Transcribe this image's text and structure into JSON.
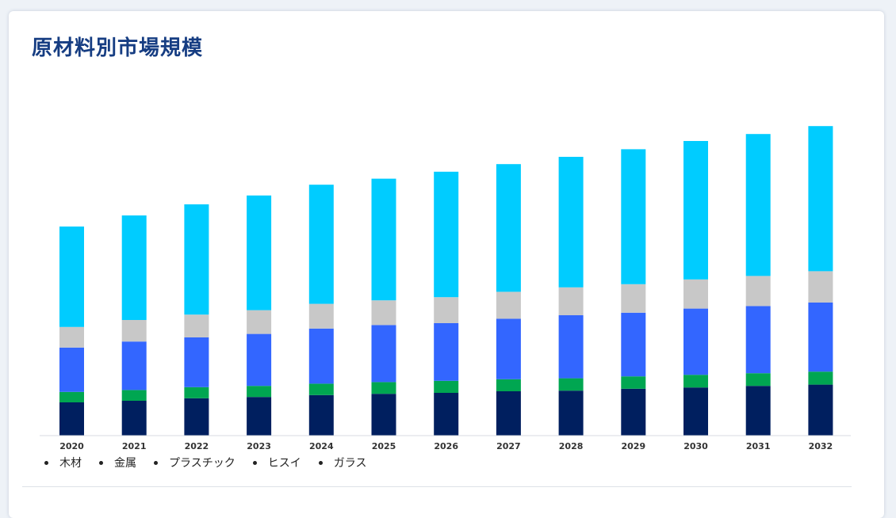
{
  "card": {
    "title": "原材料別市場規模"
  },
  "chart_data": {
    "type": "bar",
    "stacked": true,
    "title": "原材料別市場規模",
    "xlabel": "",
    "ylabel": "",
    "grid": false,
    "legend_position": "bottom-left",
    "categories": [
      "2020",
      "2021",
      "2022",
      "2023",
      "2024",
      "2025",
      "2026",
      "2027",
      "2028",
      "2029",
      "2030",
      "2031",
      "2032"
    ],
    "ylim": [
      0,
      100
    ],
    "series": [
      {
        "name": "木材",
        "color": "#001f5f",
        "values": [
          10.5,
          11.0,
          11.8,
          12.2,
          12.8,
          13.2,
          13.5,
          14.0,
          14.2,
          14.8,
          15.2,
          15.7,
          16.1
        ]
      },
      {
        "name": "金属",
        "color": "#00a651",
        "values": [
          3.3,
          3.4,
          3.5,
          3.5,
          3.6,
          3.7,
          3.8,
          3.8,
          3.9,
          3.9,
          4.0,
          4.0,
          4.1
        ]
      },
      {
        "name": "プラスチック",
        "color": "#3366ff",
        "values": [
          14.0,
          15.3,
          15.7,
          16.4,
          17.4,
          18.0,
          18.2,
          19.1,
          19.9,
          20.1,
          20.9,
          21.2,
          21.8
        ]
      },
      {
        "name": "ヒスイ",
        "color": "#c8c8c8",
        "values": [
          6.5,
          6.8,
          7.2,
          7.5,
          7.8,
          7.8,
          8.2,
          8.5,
          8.8,
          9.0,
          9.2,
          9.5,
          9.9
        ]
      },
      {
        "name": "ガラス",
        "color": "#00ccff",
        "values": [
          31.7,
          33.0,
          34.8,
          36.2,
          37.6,
          38.4,
          39.6,
          40.3,
          41.2,
          42.6,
          43.7,
          44.8,
          45.8
        ]
      }
    ]
  }
}
